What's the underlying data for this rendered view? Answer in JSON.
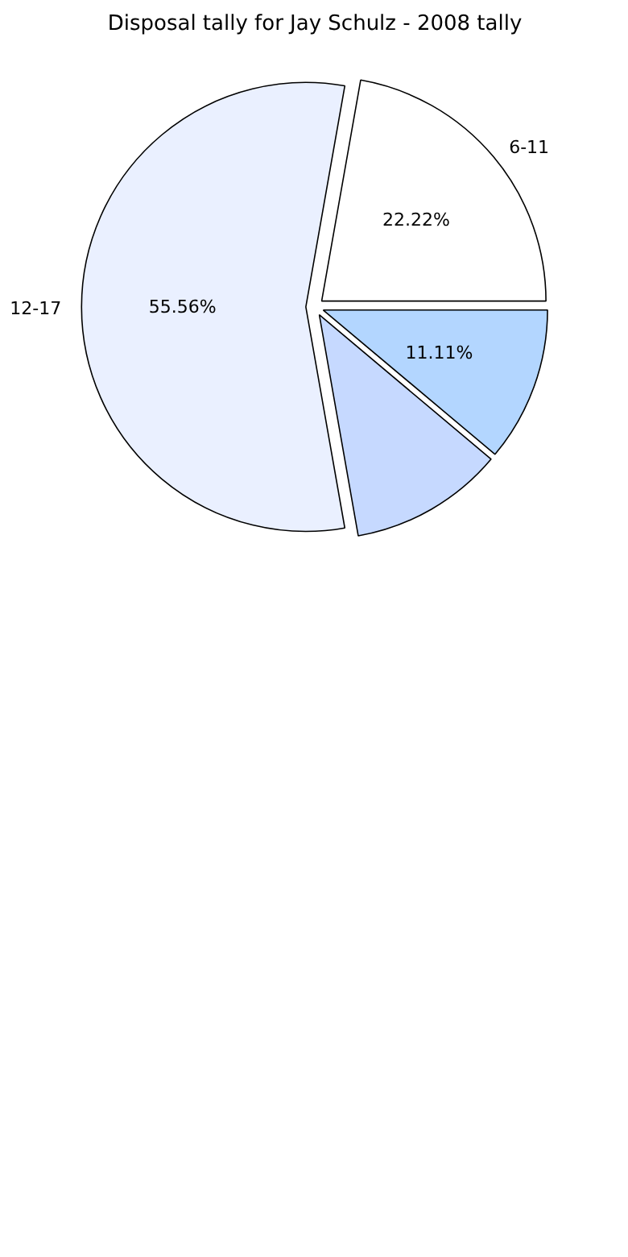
{
  "chart_data": {
    "type": "pie",
    "title": "Disposal tally for Jay Schulz - 2008 tally",
    "categories": [
      "6-11",
      "12-17",
      null,
      null
    ],
    "values": [
      22.22,
      55.56,
      11.11,
      11.11
    ],
    "colors": [
      "#ffffff",
      "#eaf0ff",
      "#c6d9ff",
      "#b3d6ff"
    ],
    "value_labels": [
      "22.22%",
      "55.56%",
      null,
      "11.11%"
    ]
  }
}
